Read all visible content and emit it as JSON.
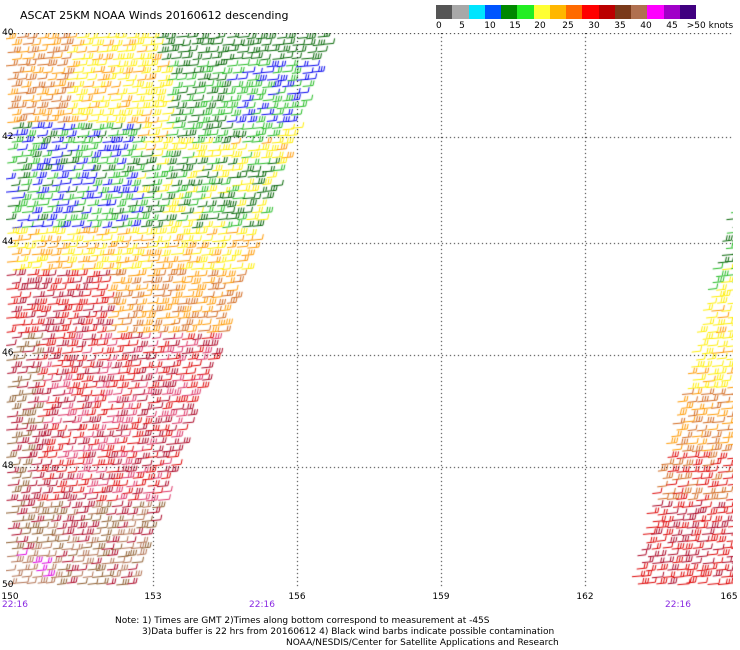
{
  "title": "ASCAT 25KM NOAA Winds 20160612 descending",
  "colorbar": {
    "colors": [
      "#555555",
      "#a8a8a8",
      "#00e5ff",
      "#0055ff",
      "#008800",
      "#22ee22",
      "#ffff33",
      "#ffb700",
      "#ff6a00",
      "#ff0000",
      "#bb0000",
      "#7a3a1a",
      "#b07050",
      "#ff00ff",
      "#a000c8",
      "#400080"
    ],
    "labels": [
      "0",
      "5",
      "10",
      "15",
      "20",
      "25",
      "30",
      "35",
      "40",
      "45",
      ">50 knots"
    ]
  },
  "map": {
    "lat_labels": [
      "40",
      "42",
      "44",
      "46",
      "48",
      "50"
    ],
    "lon_labels": [
      "150",
      "153",
      "156",
      "159",
      "162",
      "165"
    ],
    "time_labels": [
      "22:16",
      "22:16",
      "22:16"
    ]
  },
  "notes": {
    "line1": "Note: 1) Times are GMT 2)Times along bottom correspond to measurement at -45S",
    "line2": "3)Data buffer is 22 hrs from 20160612 4) Black wind barbs indicate possible contamination",
    "line3": "NOAA/NESDIS/Center for Satellite Applications and Research"
  },
  "wind_colors": {
    "dark_green": "#006400",
    "green": "#22bb22",
    "blue": "#0000ee",
    "yellow": "#ffee00",
    "orange": "#ff9900",
    "dark_orange": "#d2691e",
    "red": "#dd0000",
    "dark_red": "#aa0022",
    "pink": "#dd3366",
    "brown": "#8b5a2b",
    "tan": "#b07050",
    "magenta": "#dd00dd"
  }
}
